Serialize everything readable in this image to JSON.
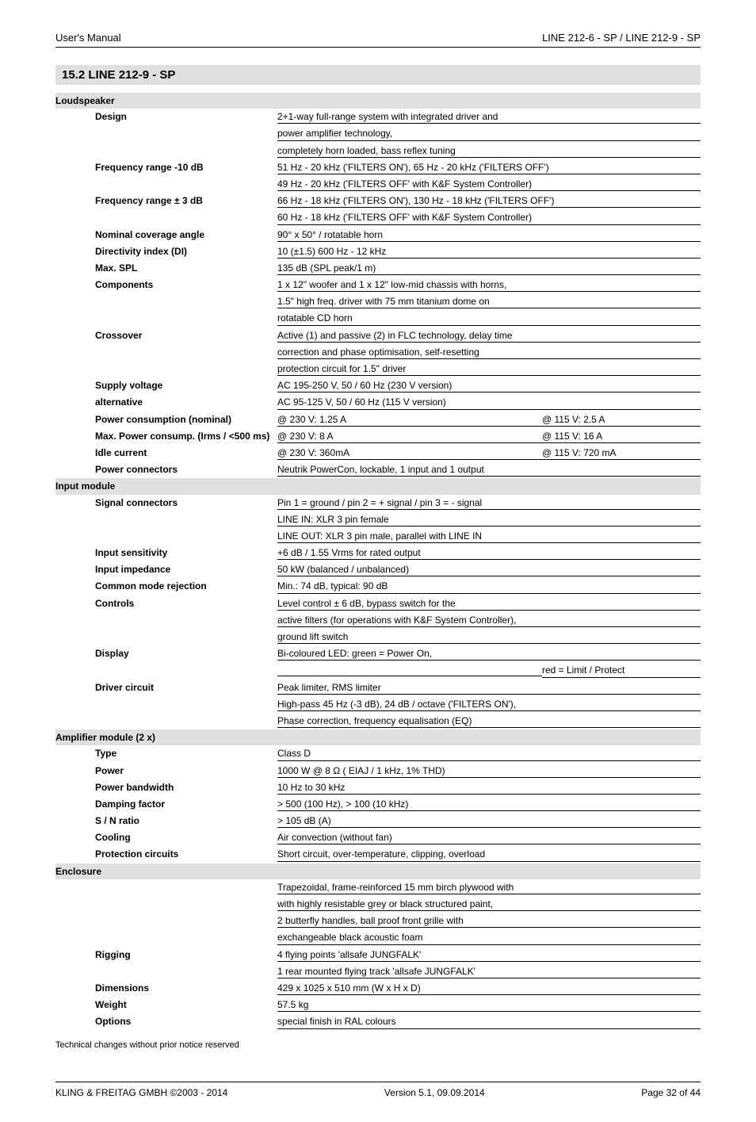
{
  "header": {
    "left": "User's Manual",
    "right": "LINE 212-6 - SP / LINE 212-9 - SP"
  },
  "section_title": "15.2  LINE 212-9 - SP",
  "groups": [
    {
      "title": "Loudspeaker",
      "rows": [
        {
          "label": "Design",
          "v1": "2+1-way full-range system with integrated driver and",
          "line": true
        },
        {
          "label": "",
          "v1": "power amplifier technology,",
          "line": true
        },
        {
          "label": "",
          "v1": "completely horn loaded, bass reflex tuning",
          "line": true
        },
        {
          "label": "Frequency range -10 dB",
          "v1": "51 Hz - 20 kHz ('FILTERS ON'), 65 Hz - 20 kHz ('FILTERS OFF')",
          "line": true
        },
        {
          "label": "",
          "v1": "49 Hz - 20 kHz ('FILTERS OFF' with K&F System Controller)",
          "line": true
        },
        {
          "label": "Frequency range ± 3 dB",
          "v1": "66 Hz - 18 kHz ('FILTERS ON'), 130 Hz - 18 kHz ('FILTERS OFF')",
          "line": true
        },
        {
          "label": "",
          "v1": "60 Hz - 18 kHz ('FILTERS OFF' with K&F System Controller)",
          "line": true
        },
        {
          "label": "Nominal coverage angle",
          "v1": "90° x 50° / rotatable horn",
          "line": true
        },
        {
          "label": "Directivity index  (DI)",
          "v1": "10 (±1.5) 600 Hz - 12 kHz",
          "line": true
        },
        {
          "label": "Max. SPL",
          "v1": "135 dB (SPL peak/1 m)",
          "line": true
        },
        {
          "label": "Components",
          "v1": "1 x 12\" woofer and 1 x 12\" low-mid chassis with horns,",
          "line": true
        },
        {
          "label": "",
          "v1": "1.5\" high freq. driver with 75 mm titanium dome on",
          "line": true
        },
        {
          "label": "",
          "v1": "rotatable CD horn",
          "line": true
        },
        {
          "label": "Crossover",
          "v1": "Active (1) and passive (2) in FLC technology, delay time",
          "line": true
        },
        {
          "label": "",
          "v1": "correction and phase optimisation, self-resetting",
          "line": true
        },
        {
          "label": "",
          "v1": "protection circuit for 1.5\" driver",
          "line": true
        },
        {
          "label": "Supply voltage",
          "v1": "AC 195-250 V, 50 / 60 Hz (230 V version)",
          "line": true
        },
        {
          "label": "alternative",
          "sub": true,
          "v1": "AC 95-125 V, 50 / 60 Hz (115 V version)",
          "line": true
        },
        {
          "label": "Power consumption (nominal)",
          "v1": "@ 230 V: 1.25 A",
          "v2": "@ 115 V: 2.5 A",
          "line": true
        },
        {
          "label": "Max. Power consump. (Irms / <500 ms)",
          "v1": "@ 230 V: 8 A",
          "v2": "@ 115 V: 16 A",
          "line": true
        },
        {
          "label": "Idle current",
          "v1": "@ 230 V: 360mA",
          "v2": "@ 115 V: 720 mA",
          "line": true
        },
        {
          "label": "Power connectors",
          "v1": "Neutrik PowerCon, lockable, 1 input and 1 output",
          "line": true
        }
      ]
    },
    {
      "title": "Input module",
      "rows": [
        {
          "label": "Signal connectors",
          "v1": "Pin 1 = ground / pin 2 = + signal / pin 3 = - signal",
          "line": true
        },
        {
          "label": "",
          "v1": "LINE IN: XLR 3 pin female",
          "line": true
        },
        {
          "label": "",
          "v1": "LINE OUT: XLR 3 pin male, parallel with LINE IN",
          "line": true
        },
        {
          "label": "Input sensitivity",
          "v1": "+6 dB / 1.55 Vrms for rated output",
          "line": true
        },
        {
          "label": "Input impedance",
          "v1": "50 kW (balanced / unbalanced)",
          "line": true
        },
        {
          "label": "Common mode rejection",
          "v1": "Min.: 74 dB, typical: 90 dB",
          "line": true
        },
        {
          "label": "Controls",
          "v1": "Level control ± 6 dB, bypass switch for the",
          "line": true
        },
        {
          "label": "",
          "v1": "active filters (for operations with K&F System Controller),",
          "line": true
        },
        {
          "label": "",
          "v1": "ground lift switch",
          "line": true
        },
        {
          "label": "Display",
          "v1": "Bi-coloured LED:   green = Power On,",
          "line": true
        },
        {
          "label": "",
          "v1": "",
          "v2": "red = Limit / Protect",
          "line": true
        },
        {
          "label": "Driver circuit",
          "v1": "Peak limiter, RMS limiter",
          "line": true
        },
        {
          "label": "",
          "v1": "High-pass 45 Hz (-3 dB), 24 dB / octave ('FILTERS ON'),",
          "line": true
        },
        {
          "label": "",
          "v1": "Phase correction, frequency equalisation (EQ)",
          "line": true
        }
      ]
    },
    {
      "title": "Amplifier module (2 x)",
      "rows": [
        {
          "label": "Type",
          "v1": "Class D",
          "line": true
        },
        {
          "label": "Power",
          "v1": "1000 W @ 8 Ω ( EIAJ / 1 kHz, 1% THD)",
          "line": true
        },
        {
          "label": "Power bandwidth",
          "v1": "10 Hz to 30 kHz",
          "line": true
        },
        {
          "label": "Damping factor",
          "v1": "> 500 (100 Hz), > 100 (10 kHz)",
          "line": true
        },
        {
          "label": "S / N ratio",
          "v1": "> 105 dB (A)",
          "line": true
        },
        {
          "label": "Cooling",
          "v1": "Air convection (without fan)",
          "line": true
        },
        {
          "label": "Protection circuits",
          "v1": "Short circuit, over-temperature, clipping, overload",
          "line": true
        }
      ]
    },
    {
      "title": "Enclosure",
      "rows": [
        {
          "label": "",
          "v1": "Trapezoidal, frame-reinforced 15 mm birch plywood with",
          "line": true
        },
        {
          "label": "",
          "v1": "with highly resistable grey or black structured paint,",
          "line": true
        },
        {
          "label": "",
          "v1": "2 butterfly handles, ball proof front grille with",
          "line": true
        },
        {
          "label": "",
          "v1": "exchangeable black acoustic foam",
          "line": true
        },
        {
          "label": "Rigging",
          "v1": "4 flying points 'allsafe JUNGFALK'",
          "line": true
        },
        {
          "label": "",
          "v1": "1 rear mounted flying track 'allsafe JUNGFALK'",
          "line": true
        },
        {
          "label": "Dimensions",
          "v1": "429 x 1025 x 510 mm (W x H x D)",
          "line": true
        },
        {
          "label": "Weight",
          "v1": "57.5 kg",
          "line": true
        },
        {
          "label": "Options",
          "v1": "special finish in RAL colours",
          "line": true
        }
      ]
    }
  ],
  "footnote": "Technical changes without prior notice reserved",
  "footer": {
    "left": "KLING & FREITAG GMBH ©2003 - 2014",
    "center": "Version 5.1, 09.09.2014",
    "right": "Page 32 of 44"
  }
}
